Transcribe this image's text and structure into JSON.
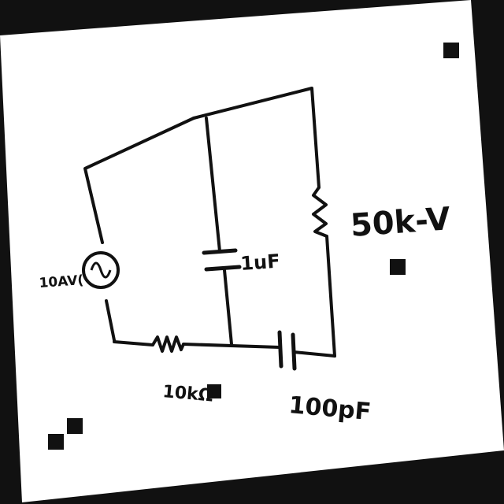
{
  "colors": {
    "background": "#111111",
    "paper": "#ffffff",
    "ink": "#111111"
  },
  "labels": {
    "source": "10AV(",
    "cap_mid": "1uF",
    "res_right": "50k-V",
    "res_bottom": "10kΩ",
    "cap_bottom": "100pF"
  }
}
